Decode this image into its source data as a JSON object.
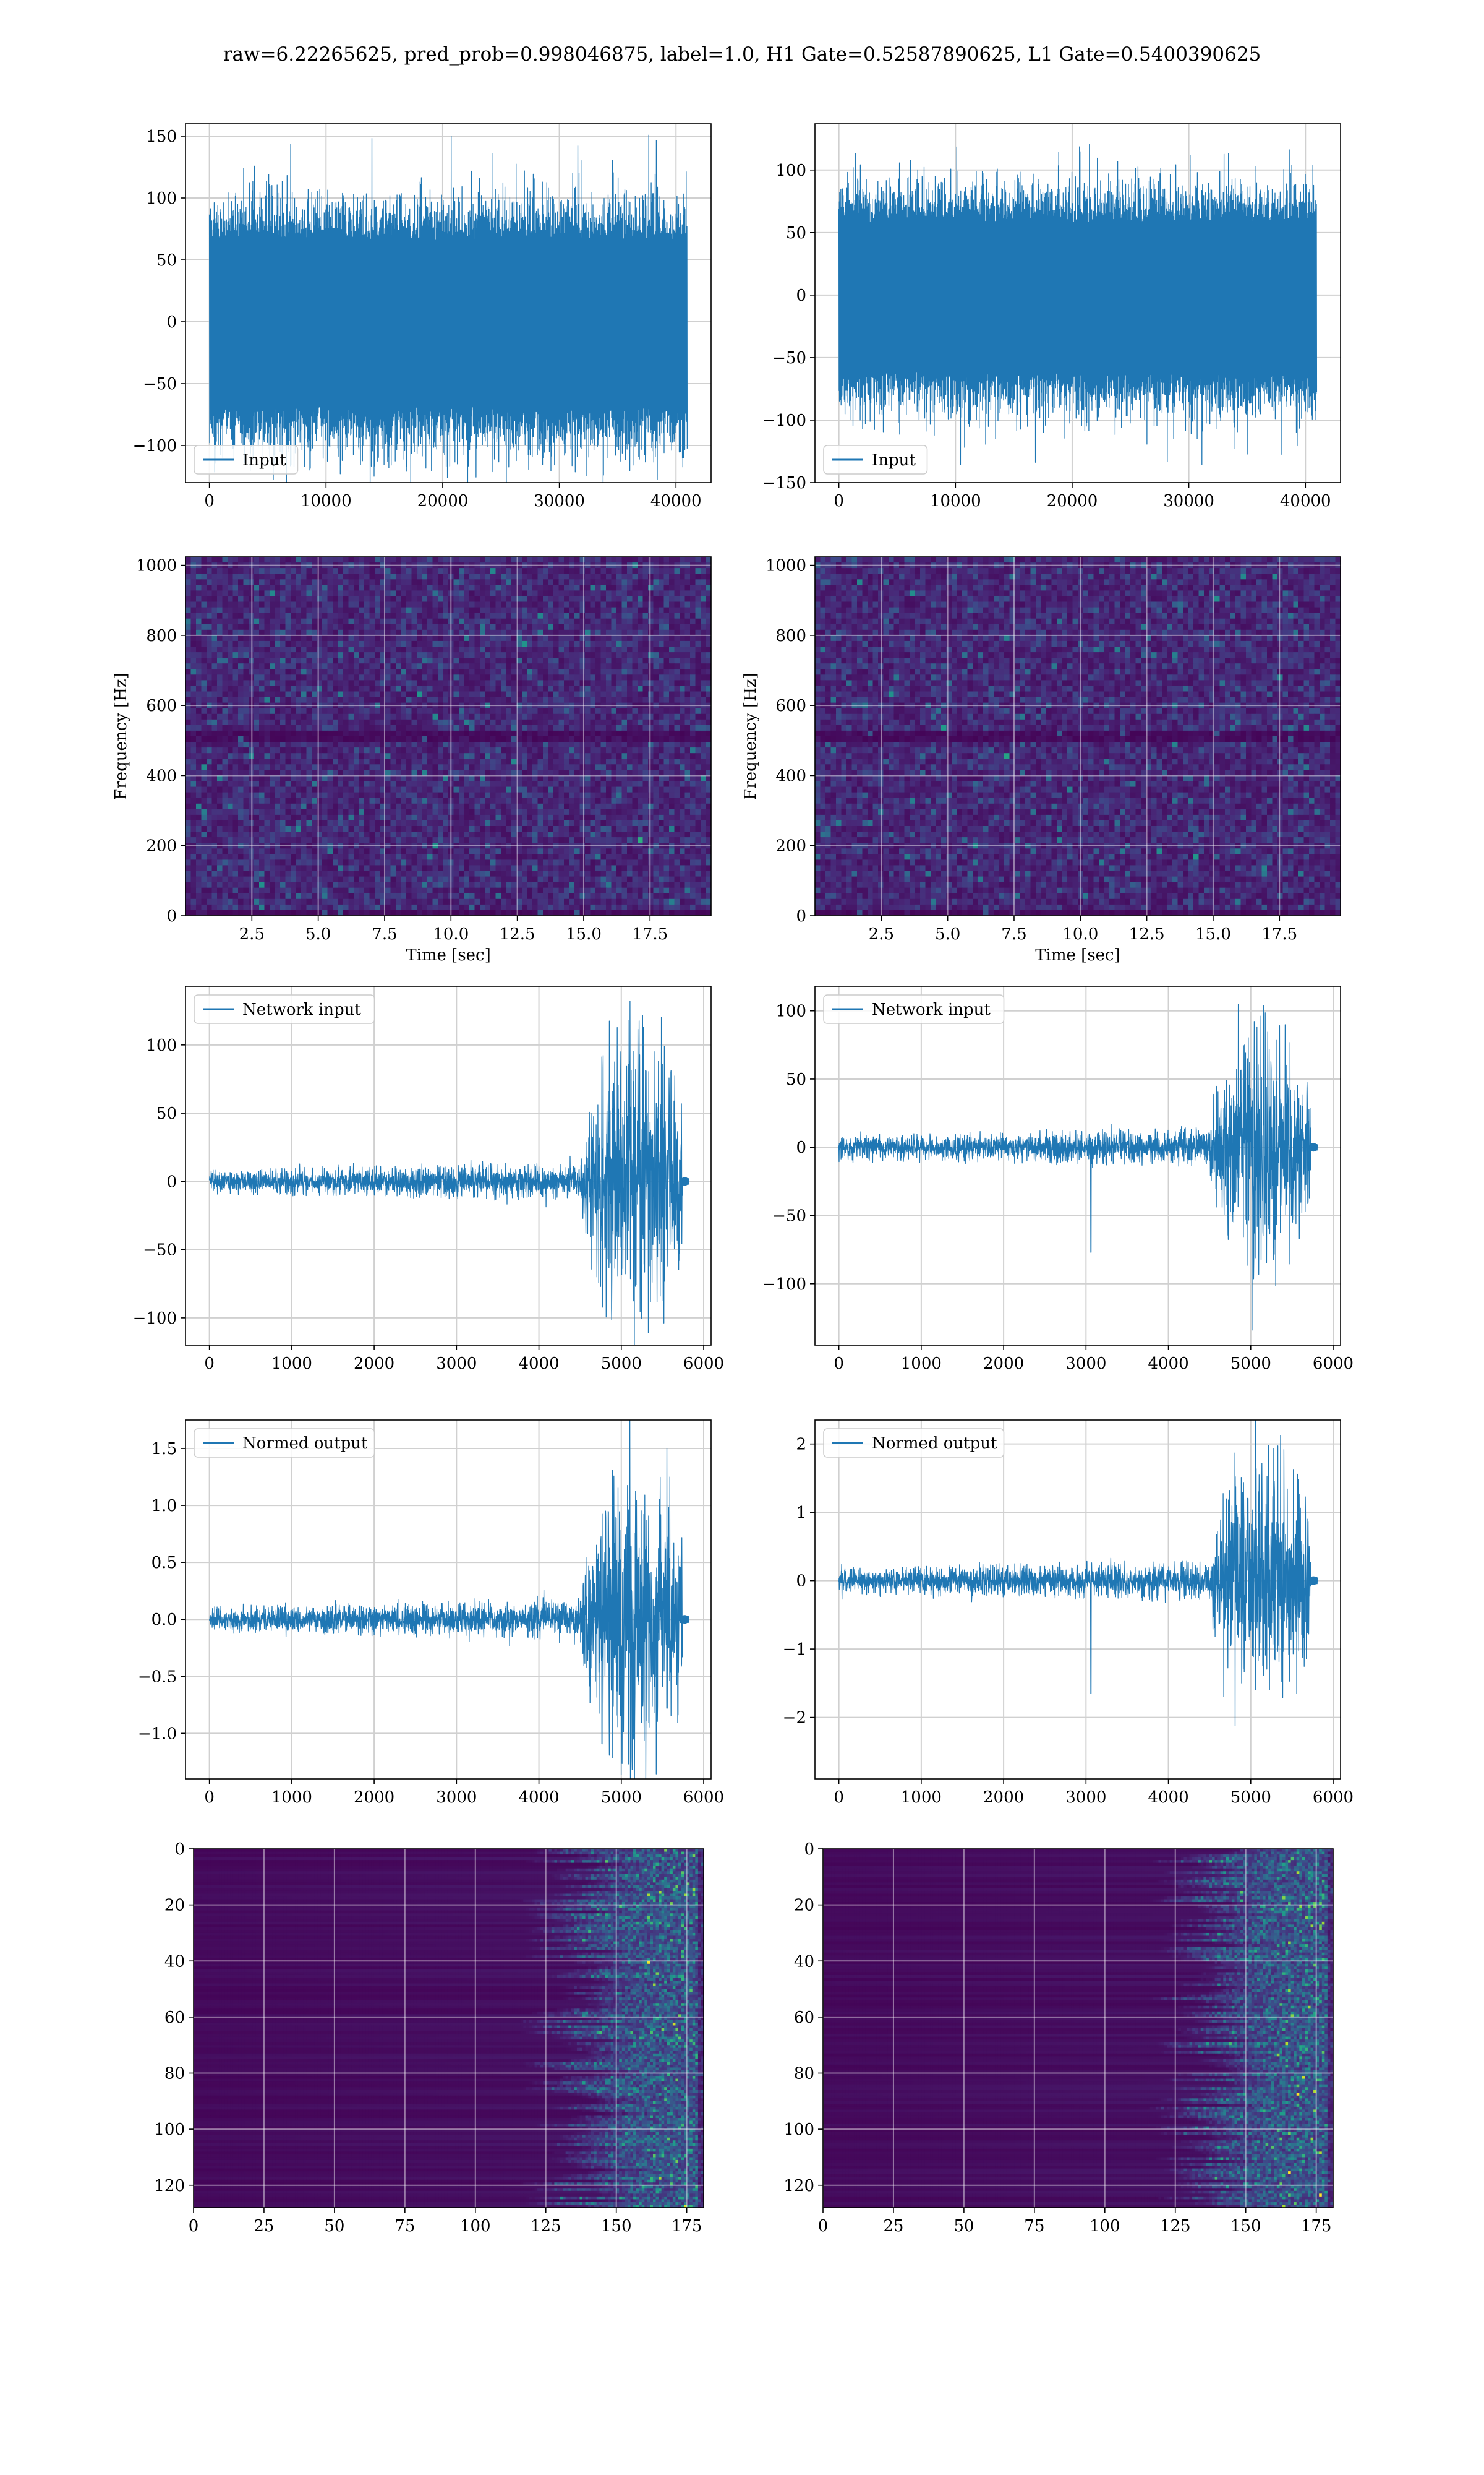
{
  "figure": {
    "title": "raw=6.22265625, pred_prob=0.998046875, label=1.0, H1 Gate=0.52587890625, L1 Gate=0.5400390625"
  },
  "colors": {
    "line": "#1f77b4",
    "grid": "#d0d0d0",
    "viridis": [
      "#440154",
      "#482878",
      "#3e4989",
      "#31688e",
      "#26828e",
      "#1f9e89",
      "#35b779",
      "#6ece58",
      "#b5de2b",
      "#fde725"
    ]
  },
  "chart_data": [
    {
      "id": "h1-input",
      "type": "line",
      "style": "noise",
      "series": [
        {
          "name": "Input"
        }
      ],
      "legend": "lower-left",
      "grid": true,
      "x_range": [
        0,
        40960
      ],
      "xlim": [
        -2048,
        43008
      ],
      "ylim": [
        -130,
        160
      ],
      "xticks": [
        0,
        10000,
        20000,
        30000,
        40000
      ],
      "yticks": [
        -100,
        -50,
        0,
        50,
        100,
        150
      ],
      "envelope": [
        -95,
        90
      ],
      "peak": [
        -128,
        153
      ],
      "xlabel": "",
      "ylabel": ""
    },
    {
      "id": "l1-input",
      "type": "line",
      "style": "noise",
      "series": [
        {
          "name": "Input"
        }
      ],
      "legend": "lower-left",
      "grid": true,
      "x_range": [
        0,
        40960
      ],
      "xlim": [
        -2048,
        43008
      ],
      "ylim": [
        -150,
        137
      ],
      "xticks": [
        0,
        10000,
        20000,
        30000,
        40000
      ],
      "yticks": [
        -150,
        -100,
        -50,
        0,
        50,
        100
      ],
      "envelope": [
        -85,
        80
      ],
      "peak": [
        -137,
        128
      ],
      "xlabel": "",
      "ylabel": ""
    },
    {
      "id": "h1-spectrogram",
      "type": "heatmap",
      "style": "spectrogram",
      "grid": true,
      "xlim": [
        0,
        19.8
      ],
      "ylim": [
        0,
        1024
      ],
      "xticks": [
        "2.5",
        "5.0",
        "7.5",
        "10.0",
        "12.5",
        "15.0",
        "17.5"
      ],
      "yticks": [
        "0",
        "200",
        "400",
        "600",
        "800",
        "1000"
      ],
      "xlabel": "Time [sec]",
      "ylabel": "Frequency [Hz]"
    },
    {
      "id": "l1-spectrogram",
      "type": "heatmap",
      "style": "spectrogram",
      "grid": true,
      "xlim": [
        0,
        19.8
      ],
      "ylim": [
        0,
        1024
      ],
      "xticks": [
        "2.5",
        "5.0",
        "7.5",
        "10.0",
        "12.5",
        "15.0",
        "17.5"
      ],
      "yticks": [
        "0",
        "200",
        "400",
        "600",
        "800",
        "1000"
      ],
      "xlabel": "Time [sec]",
      "ylabel": "Frequency [Hz]"
    },
    {
      "id": "h1-network-input",
      "type": "line",
      "style": "chirp",
      "series": [
        {
          "name": "Network input"
        }
      ],
      "legend": "upper-left",
      "grid": true,
      "x_range": [
        0,
        5800
      ],
      "xlim": [
        -290,
        6090
      ],
      "ylim": [
        -120,
        143
      ],
      "xticks": [
        0,
        1000,
        2000,
        3000,
        4000,
        5000,
        6000
      ],
      "yticks": [
        -100,
        -50,
        0,
        50,
        100
      ],
      "base_amp": 14,
      "peak_amp": 135,
      "spike_at": null,
      "signal_end": 5740,
      "xlabel": "",
      "ylabel": ""
    },
    {
      "id": "l1-network-input",
      "type": "line",
      "style": "chirp",
      "series": [
        {
          "name": "Network input"
        }
      ],
      "legend": "upper-left",
      "grid": true,
      "x_range": [
        0,
        5800
      ],
      "xlim": [
        -290,
        6090
      ],
      "ylim": [
        -145,
        118
      ],
      "xticks": [
        0,
        1000,
        2000,
        3000,
        4000,
        5000,
        6000
      ],
      "yticks": [
        -100,
        -50,
        0,
        50,
        100
      ],
      "base_amp": 14,
      "peak_amp": 112,
      "spike_at": 3060,
      "signal_end": 5730,
      "xlabel": "",
      "ylabel": ""
    },
    {
      "id": "h1-normed-output",
      "type": "line",
      "style": "chirp",
      "series": [
        {
          "name": "Normed output"
        }
      ],
      "legend": "upper-left",
      "grid": true,
      "x_range": [
        0,
        5800
      ],
      "xlim": [
        -290,
        6090
      ],
      "ylim": [
        -1.4,
        1.75
      ],
      "xticks": [
        0,
        1000,
        2000,
        3000,
        4000,
        5000,
        6000
      ],
      "yticks": [
        "-1.0",
        "-0.5",
        "0.0",
        "0.5",
        "1.0",
        "1.5"
      ],
      "base_amp": 0.18,
      "peak_amp": 1.6,
      "spike_at": null,
      "signal_end": 5740,
      "xlabel": "",
      "ylabel": ""
    },
    {
      "id": "l1-normed-output",
      "type": "line",
      "style": "chirp",
      "series": [
        {
          "name": "Normed output"
        }
      ],
      "legend": "upper-left",
      "grid": true,
      "x_range": [
        0,
        5800
      ],
      "xlim": [
        -290,
        6090
      ],
      "ylim": [
        -2.9,
        2.35
      ],
      "xticks": [
        0,
        1000,
        2000,
        3000,
        4000,
        5000,
        6000
      ],
      "yticks": [
        -2,
        -1,
        0,
        1,
        2
      ],
      "base_amp": 0.3,
      "peak_amp": 2.3,
      "spike_at": 3060,
      "signal_end": 5730,
      "xlabel": "",
      "ylabel": ""
    },
    {
      "id": "h1-features",
      "type": "heatmap",
      "style": "feature",
      "grid": true,
      "xlim": [
        0,
        181
      ],
      "ylim": [
        128,
        0
      ],
      "xticks": [
        0,
        25,
        50,
        75,
        100,
        125,
        150,
        175
      ],
      "yticks": [
        0,
        20,
        40,
        60,
        80,
        100,
        120
      ],
      "xlabel": "",
      "ylabel": ""
    },
    {
      "id": "l1-features",
      "type": "heatmap",
      "style": "feature",
      "grid": true,
      "xlim": [
        0,
        181
      ],
      "ylim": [
        128,
        0
      ],
      "xticks": [
        0,
        25,
        50,
        75,
        100,
        125,
        150,
        175
      ],
      "yticks": [
        0,
        20,
        40,
        60,
        80,
        100,
        120
      ],
      "xlabel": "",
      "ylabel": ""
    }
  ]
}
